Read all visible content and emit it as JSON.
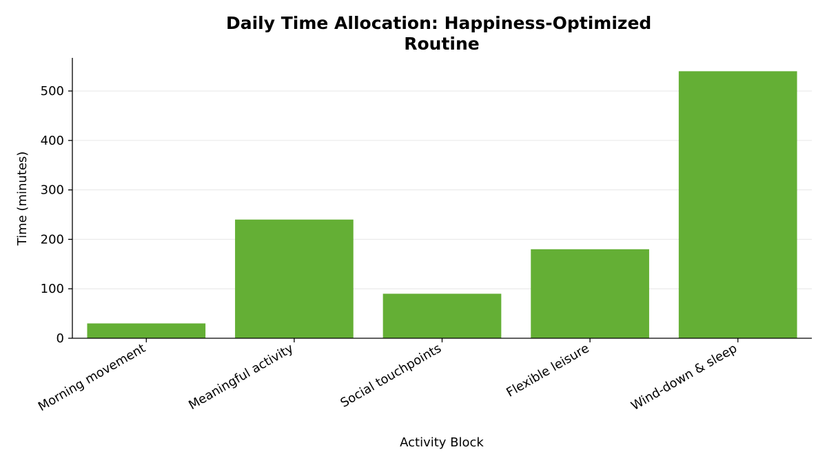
{
  "chart_data": {
    "type": "bar",
    "title": "Daily Time Allocation: Happiness-Optimized\nRoutine",
    "title_lines": [
      "Daily Time Allocation: Happiness-Optimized",
      "Routine"
    ],
    "xlabel": "Activity Block",
    "ylabel": "Time (minutes)",
    "categories": [
      "Morning movement",
      "Meaningful activity",
      "Social touchpoints",
      "Flexible leisure",
      "Wind-down & sleep"
    ],
    "values": [
      30,
      240,
      90,
      180,
      540
    ],
    "ylim": [
      0,
      567
    ],
    "yticks": [
      0,
      100,
      200,
      300,
      400,
      500
    ],
    "bar_color": "#64AF35",
    "grid": "horizontal",
    "legend": "none"
  }
}
